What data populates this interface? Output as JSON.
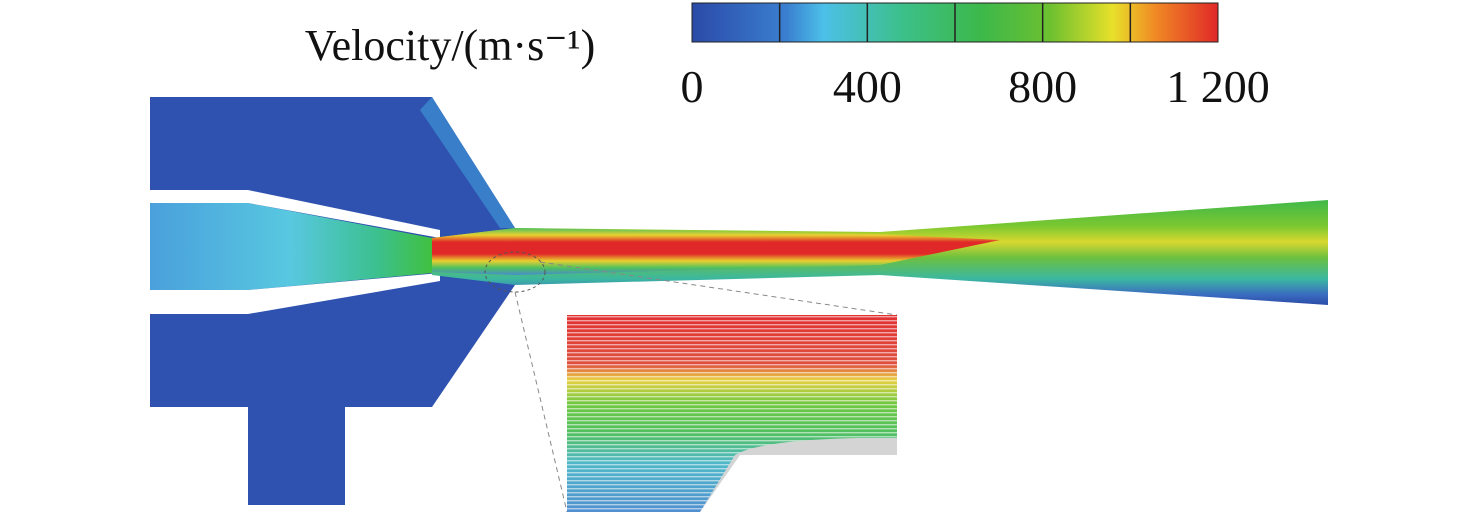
{
  "colorbar": {
    "title": "Velocity/(m·s⁻¹)",
    "lim": [
      0,
      1200
    ],
    "ticks": [
      0,
      400,
      800,
      {
        "value": 1200,
        "label": "1 200"
      }
    ],
    "boundaries": [
      200,
      400,
      600,
      800,
      1000
    ]
  }
}
